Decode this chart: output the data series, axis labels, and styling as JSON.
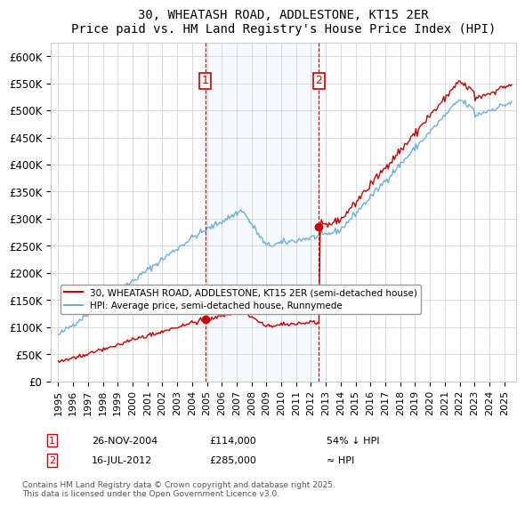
{
  "title": "30, WHEATASH ROAD, ADDLESTONE, KT15 2ER",
  "subtitle": "Price paid vs. HM Land Registry's House Price Index (HPI)",
  "legend_line1": "30, WHEATASH ROAD, ADDLESTONE, KT15 2ER (semi-detached house)",
  "legend_line2": "HPI: Average price, semi-detached house, Runnymede",
  "annotation1_date": "26-NOV-2004",
  "annotation1_price": "£114,000",
  "annotation1_note": "54% ↓ HPI",
  "annotation2_date": "16-JUL-2012",
  "annotation2_price": "£285,000",
  "annotation2_note": "≈ HPI",
  "footer": "Contains HM Land Registry data © Crown copyright and database right 2025.\nThis data is licensed under the Open Government Licence v3.0.",
  "hpi_color": "#6ab0e0",
  "price_color": "#cc0000",
  "marker_color": "#cc0000",
  "annotation_box_color": "#cc0000",
  "shaded_region_color": "#ddeeff",
  "ylim": [
    0,
    625000
  ],
  "yticks": [
    0,
    50000,
    100000,
    150000,
    200000,
    250000,
    300000,
    350000,
    400000,
    450000,
    500000,
    550000,
    600000
  ],
  "ytick_labels": [
    "£0",
    "£50K",
    "£100K",
    "£150K",
    "£200K",
    "£250K",
    "£300K",
    "£350K",
    "£400K",
    "£450K",
    "£500K",
    "£550K",
    "£600K"
  ],
  "xtick_start_year": 1995,
  "xtick_end_year": 2025,
  "sale1_x": 2004.9,
  "sale1_y": 114000,
  "sale2_x": 2012.54,
  "sale2_y": 285000,
  "vline1_x": 2004.9,
  "vline2_x": 2012.54,
  "shade_x1": 2004.9,
  "shade_x2": 2012.54
}
